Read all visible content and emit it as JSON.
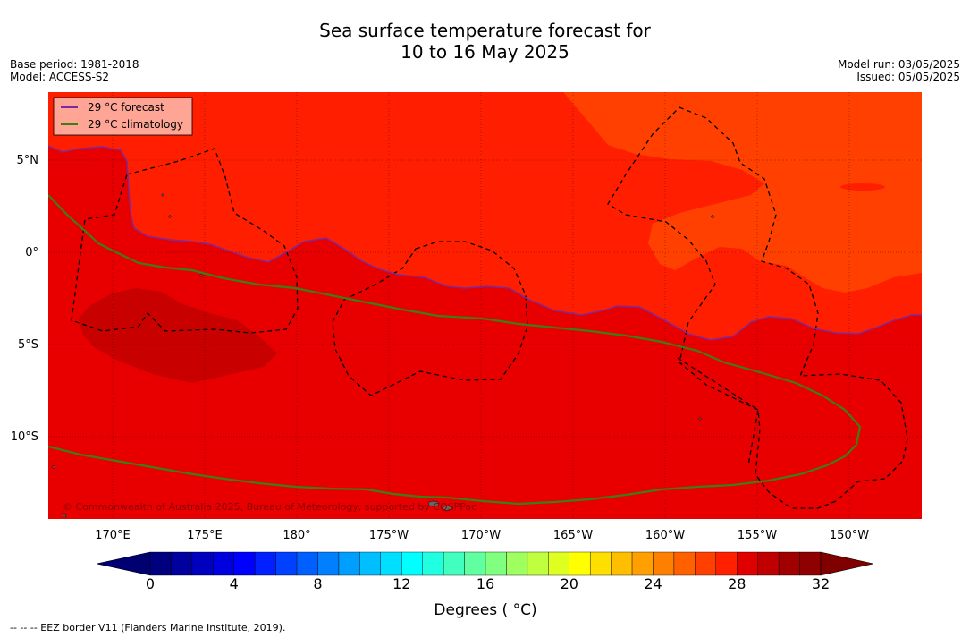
{
  "title": {
    "line1": "Sea surface temperature forecast for",
    "line2": "10 to 16 May 2025"
  },
  "meta_left": {
    "base_period": "Base period: 1981-2018",
    "model": "Model: ACCESS-S2"
  },
  "meta_right": {
    "model_run": "Model run: 03/05/2025",
    "issued": "Issued: 05/05/2025"
  },
  "legend": {
    "forecast": "29 °C  forecast",
    "climatology": "29 °C  climatology",
    "forecast_color": "#7b1fa2",
    "climatology_color": "#2e7d32"
  },
  "map": {
    "lat_labels": [
      "5°N",
      "0°",
      "5°S",
      "10°S"
    ],
    "lon_labels": [
      "170°E",
      "175°E",
      "180°",
      "175°W",
      "170°W",
      "165°W",
      "160°W",
      "155°W",
      "150°W"
    ],
    "copyright": "© Commonwealth of Australia 2025, Bureau of Meteorology, supported by COSPPac",
    "colors": {
      "zone_29_30": "#ff1e00",
      "zone_30_31": "#e80000",
      "zone_31_32": "#c80000",
      "zone_28_29": "#ff4000"
    }
  },
  "colorbar": {
    "title": "Degrees ( °C)",
    "tick_labels": [
      "0",
      "4",
      "8",
      "12",
      "16",
      "20",
      "24",
      "28",
      "32"
    ],
    "colors": [
      "#00007f",
      "#00009f",
      "#0000bf",
      "#0000df",
      "#0000ff",
      "#0020ff",
      "#0040ff",
      "#0060ff",
      "#0080ff",
      "#009fff",
      "#00bfff",
      "#00dfff",
      "#00ffff",
      "#20ffdf",
      "#40ffbf",
      "#60ff9f",
      "#80ff80",
      "#9fff60",
      "#bfff40",
      "#dfff20",
      "#ffff00",
      "#ffdf00",
      "#ffbf00",
      "#ff9f00",
      "#ff8000",
      "#ff6000",
      "#ff4000",
      "#ff2000",
      "#e00000",
      "#c00000",
      "#a00000",
      "#8f0000"
    ],
    "under_color": "#000070",
    "over_color": "#800000"
  },
  "footer": "--  --  -- EEZ border V11 (Flanders Marine Institute, 2019)."
}
